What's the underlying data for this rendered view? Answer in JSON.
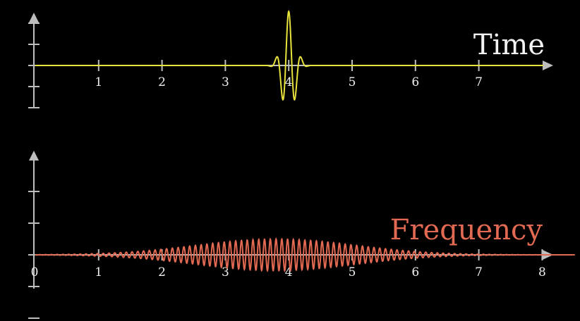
{
  "colors": {
    "background": "#000000",
    "axis": "#bdbdbd",
    "time_signal": "#e8e23c",
    "frequency_signal": "#e36a52",
    "time_label": "#f2f2f2",
    "frequency_label": "#e36a52"
  },
  "chart_data": [
    {
      "type": "line",
      "title": "Time",
      "xlim": [
        0,
        8
      ],
      "ylim": [
        -1,
        1
      ],
      "x_ticks": [
        "1",
        "2",
        "3",
        "4",
        "5",
        "6",
        "7"
      ],
      "y_ticks": [
        -1,
        -0.5,
        0.5,
        1
      ],
      "series": [
        {
          "signal": "gaussian-wave-packet",
          "center": 4.0,
          "width": 0.1,
          "frequency": 5,
          "peak": 1.0
        }
      ]
    },
    {
      "type": "line",
      "title": "Frequency",
      "xlim": [
        0,
        8
      ],
      "ylim": [
        -1,
        1
      ],
      "x_ticks": [
        "0",
        "1",
        "2",
        "3",
        "4",
        "5",
        "6",
        "7",
        "8"
      ],
      "y_ticks": [
        -1,
        -0.5,
        0.5,
        1
      ],
      "series": [
        {
          "signal": "gaussian-wave-packet",
          "center": 3.8,
          "width": 1.25,
          "frequency": 11,
          "peak": 0.25
        }
      ]
    }
  ]
}
